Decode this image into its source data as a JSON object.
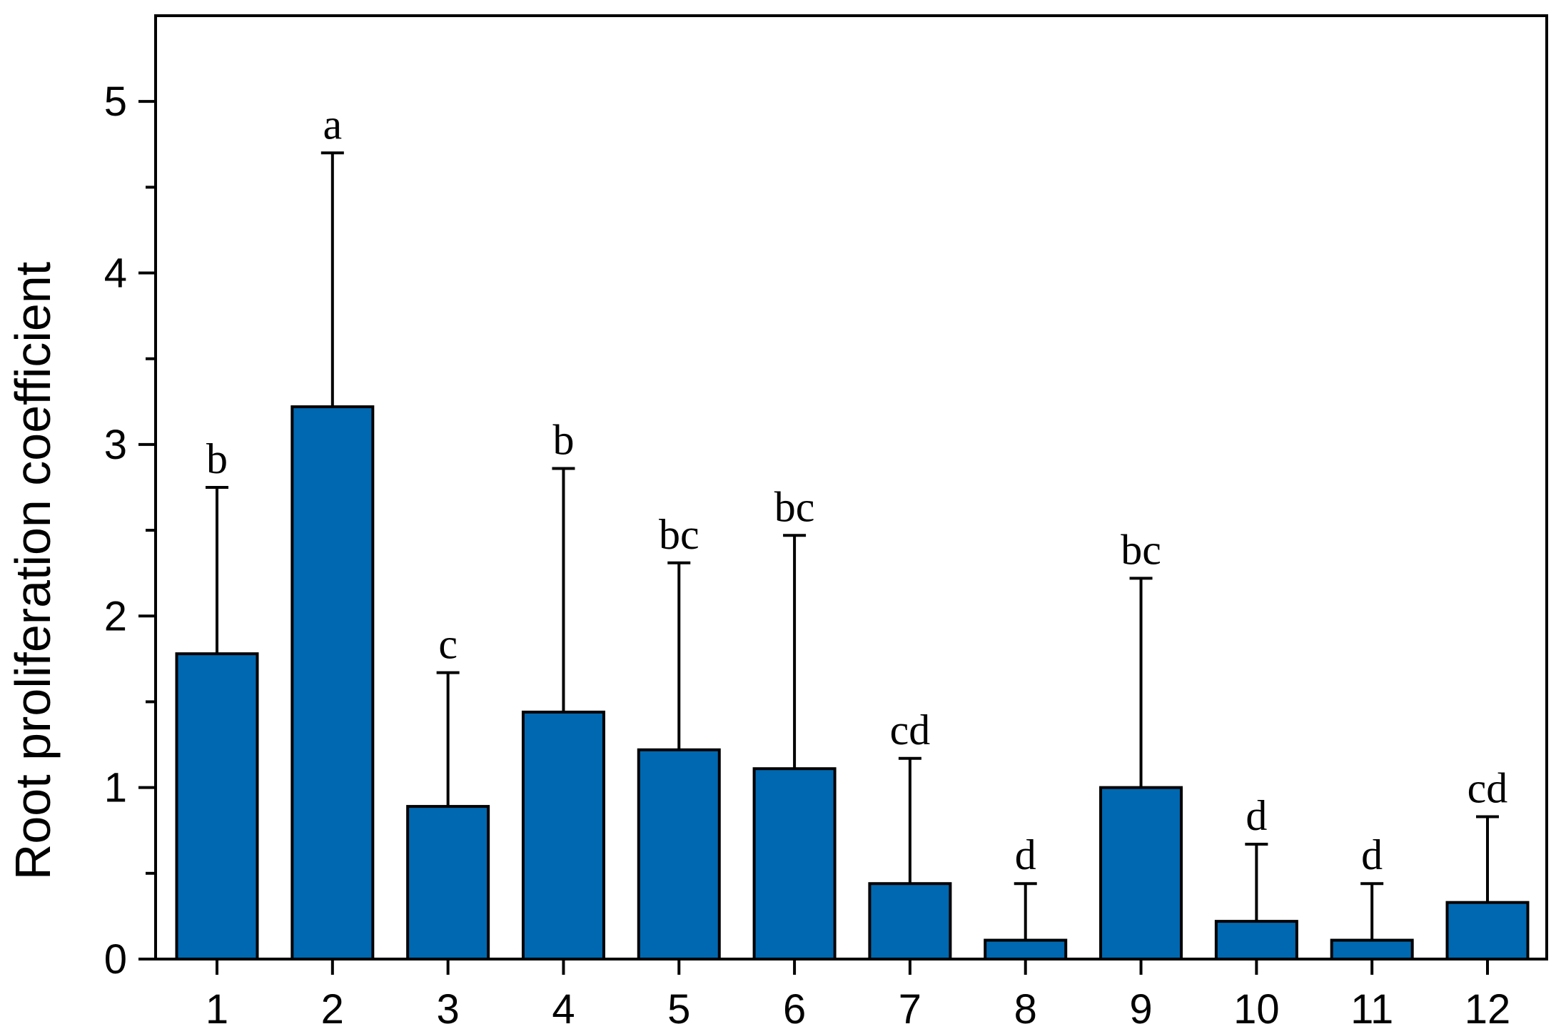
{
  "chart_data": {
    "type": "bar",
    "title": "",
    "xlabel": "",
    "ylabel": "Root proliferation coefficient",
    "ylim": [
      0,
      5.5
    ],
    "yticks": [
      0,
      1,
      2,
      3,
      4,
      5
    ],
    "grid": false,
    "legend": "none",
    "categories": [
      "1",
      "2",
      "3",
      "4",
      "5",
      "6",
      "7",
      "8",
      "9",
      "10",
      "11",
      "12"
    ],
    "values": [
      1.78,
      3.22,
      0.89,
      1.44,
      1.22,
      1.11,
      0.44,
      0.11,
      1.0,
      0.22,
      0.11,
      0.33
    ],
    "error_upper": [
      2.75,
      4.7,
      1.67,
      2.86,
      2.31,
      2.47,
      1.17,
      0.44,
      2.22,
      0.67,
      0.44,
      0.83
    ],
    "significance": [
      "b",
      "a",
      "c",
      "b",
      "bc",
      "bc",
      "cd",
      "d",
      "bc",
      "d",
      "d",
      "cd"
    ],
    "bar_color": "#0068b0"
  }
}
